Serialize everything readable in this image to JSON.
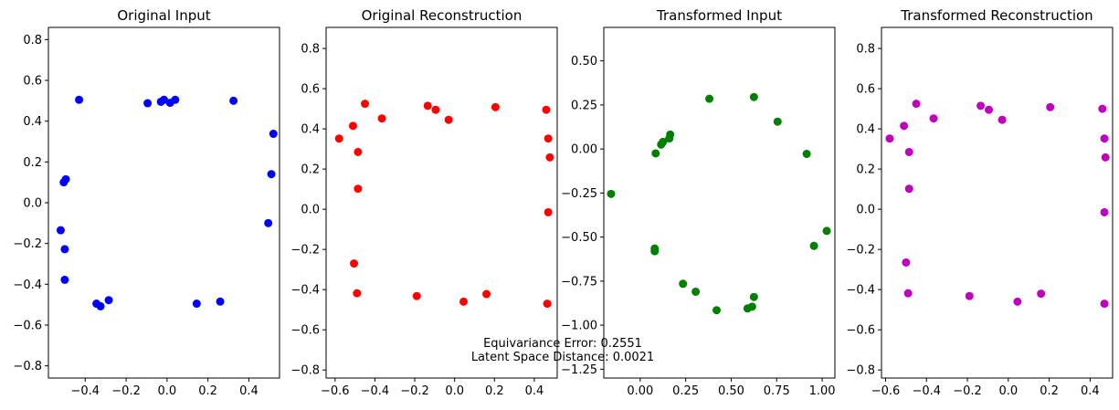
{
  "chart_data": [
    {
      "type": "scatter",
      "title": "Original Input",
      "color": "#0000ff",
      "xlim": [
        -0.58,
        0.55
      ],
      "ylim": [
        -0.86,
        0.86
      ],
      "xticks": [
        -0.4,
        -0.2,
        0.0,
        0.2,
        0.4
      ],
      "xtick_labels": [
        "−0.4",
        "−0.2",
        "0.0",
        "0.2",
        "0.4"
      ],
      "yticks": [
        -0.8,
        -0.6,
        -0.4,
        -0.2,
        0.0,
        0.2,
        0.4,
        0.6,
        0.8
      ],
      "ytick_labels": [
        "−0.8",
        "−0.6",
        "−0.4",
        "−0.2",
        "0.0",
        "0.2",
        "0.4",
        "0.6",
        "0.8"
      ],
      "points": [
        [
          -0.43,
          0.505
        ],
        [
          -0.095,
          0.488
        ],
        [
          -0.03,
          0.495
        ],
        [
          -0.015,
          0.505
        ],
        [
          0.015,
          0.49
        ],
        [
          0.04,
          0.505
        ],
        [
          0.325,
          0.5
        ],
        [
          0.52,
          0.338
        ],
        [
          0.51,
          0.14
        ],
        [
          0.495,
          -0.1
        ],
        [
          -0.495,
          0.115
        ],
        [
          -0.505,
          0.1
        ],
        [
          -0.52,
          -0.135
        ],
        [
          -0.5,
          -0.228
        ],
        [
          -0.5,
          -0.378
        ],
        [
          -0.345,
          -0.495
        ],
        [
          -0.325,
          -0.508
        ],
        [
          -0.285,
          -0.478
        ],
        [
          0.145,
          -0.495
        ],
        [
          0.26,
          -0.485
        ]
      ]
    },
    {
      "type": "scatter",
      "title": "Original Reconstruction",
      "color": "#ff0000",
      "xlim": [
        -0.645,
        0.515
      ],
      "ylim": [
        -0.84,
        0.905
      ],
      "xticks": [
        -0.6,
        -0.4,
        -0.2,
        0.0,
        0.2,
        0.4
      ],
      "xtick_labels": [
        "−0.6",
        "−0.4",
        "−0.2",
        "0.0",
        "0.2",
        "0.4"
      ],
      "yticks": [
        -0.8,
        -0.6,
        -0.4,
        -0.2,
        0.0,
        0.2,
        0.4,
        0.6,
        0.8
      ],
      "ytick_labels": [
        "−0.8",
        "−0.6",
        "−0.4",
        "−0.2",
        "0.0",
        "0.2",
        "0.4",
        "0.6",
        "0.8"
      ],
      "points": [
        [
          -0.58,
          0.352
        ],
        [
          -0.51,
          0.415
        ],
        [
          -0.45,
          0.525
        ],
        [
          -0.365,
          0.452
        ],
        [
          -0.485,
          0.285
        ],
        [
          -0.485,
          0.102
        ],
        [
          -0.135,
          0.515
        ],
        [
          -0.095,
          0.495
        ],
        [
          -0.03,
          0.445
        ],
        [
          0.205,
          0.508
        ],
        [
          0.46,
          0.495
        ],
        [
          0.47,
          0.352
        ],
        [
          0.478,
          0.258
        ],
        [
          0.47,
          -0.015
        ],
        [
          0.465,
          -0.47
        ],
        [
          -0.505,
          -0.27
        ],
        [
          -0.49,
          -0.418
        ],
        [
          -0.19,
          -0.432
        ],
        [
          0.045,
          -0.46
        ],
        [
          0.16,
          -0.422
        ]
      ]
    },
    {
      "type": "scatter",
      "title": "Transformed Input",
      "color": "#008000",
      "xlim": [
        -0.2,
        1.07
      ],
      "ylim": [
        -1.3,
        0.69
      ],
      "xticks": [
        0.0,
        0.25,
        0.5,
        0.75,
        1.0
      ],
      "xtick_labels": [
        "0.00",
        "0.25",
        "0.50",
        "0.75",
        "1.00"
      ],
      "yticks": [
        -1.25,
        -1.0,
        -0.75,
        -0.5,
        -0.25,
        0.0,
        0.25,
        0.5
      ],
      "ytick_labels": [
        "−1.25",
        "−1.00",
        "−0.75",
        "−0.50",
        "−0.25",
        "0.00",
        "0.25",
        "0.50"
      ],
      "points": [
        [
          -0.16,
          -0.255
        ],
        [
          0.085,
          -0.025
        ],
        [
          0.115,
          0.025
        ],
        [
          0.125,
          0.04
        ],
        [
          0.16,
          0.06
        ],
        [
          0.165,
          0.082
        ],
        [
          0.38,
          0.285
        ],
        [
          0.625,
          0.295
        ],
        [
          0.755,
          0.155
        ],
        [
          0.915,
          -0.028
        ],
        [
          1.025,
          -0.465
        ],
        [
          0.955,
          -0.55
        ],
        [
          0.08,
          -0.565
        ],
        [
          0.08,
          -0.58
        ],
        [
          0.235,
          -0.765
        ],
        [
          0.305,
          -0.81
        ],
        [
          0.42,
          -0.915
        ],
        [
          0.59,
          -0.905
        ],
        [
          0.615,
          -0.895
        ],
        [
          0.625,
          -0.84
        ]
      ]
    },
    {
      "type": "scatter",
      "title": "Transformed Reconstruction",
      "color": "#bf00bf",
      "xlim": [
        -0.62,
        0.51
      ],
      "ylim": [
        -0.84,
        0.905
      ],
      "xticks": [
        -0.6,
        -0.4,
        -0.2,
        0.0,
        0.2,
        0.4
      ],
      "xtick_labels": [
        "−0.6",
        "−0.4",
        "−0.2",
        "0.0",
        "0.2",
        "0.4"
      ],
      "yticks": [
        -0.8,
        -0.6,
        -0.4,
        -0.2,
        0.0,
        0.2,
        0.4,
        0.6,
        0.8
      ],
      "ytick_labels": [
        "−0.8",
        "−0.6",
        "−0.4",
        "−0.2",
        "0.0",
        "0.2",
        "0.4",
        "0.6",
        "0.8"
      ],
      "points": [
        [
          -0.58,
          0.352
        ],
        [
          -0.51,
          0.415
        ],
        [
          -0.45,
          0.525
        ],
        [
          -0.365,
          0.452
        ],
        [
          -0.485,
          0.285
        ],
        [
          -0.485,
          0.102
        ],
        [
          -0.135,
          0.515
        ],
        [
          -0.095,
          0.495
        ],
        [
          -0.03,
          0.445
        ],
        [
          0.205,
          0.508
        ],
        [
          0.46,
          0.5
        ],
        [
          0.47,
          0.352
        ],
        [
          0.475,
          0.258
        ],
        [
          0.47,
          -0.015
        ],
        [
          0.47,
          -0.47
        ],
        [
          -0.5,
          -0.265
        ],
        [
          -0.49,
          -0.418
        ],
        [
          -0.19,
          -0.432
        ],
        [
          0.045,
          -0.46
        ],
        [
          0.16,
          -0.42
        ]
      ]
    }
  ],
  "annotations": {
    "equivariance_error": "Equivariance Error: 0.2551",
    "latent_distance": "Latent Space Distance: 0.0021"
  }
}
